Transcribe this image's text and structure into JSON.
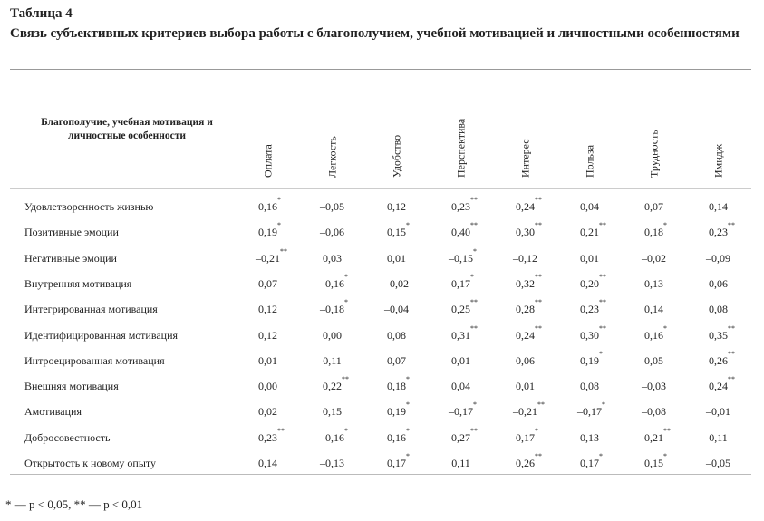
{
  "table": {
    "number": "Таблица 4",
    "caption": "Связь субъективных критериев выбора работы с благополучием, учебной мотивацией и личностными особенностями",
    "row_header": "Благополучие, учебная мотивация и личностные особенности",
    "columns": [
      "Оплата",
      "Легкость",
      "Удобство",
      "Перспектива",
      "Интерес",
      "Польза",
      "Трудность",
      "Имидж"
    ],
    "rows": [
      {
        "label": "Удовлетворенность жизнью",
        "values": [
          [
            "0,16",
            "*"
          ],
          [
            "–0,05",
            ""
          ],
          [
            "0,12",
            ""
          ],
          [
            "0,23",
            "**"
          ],
          [
            "0,24",
            "**"
          ],
          [
            "0,04",
            ""
          ],
          [
            "0,07",
            ""
          ],
          [
            "0,14",
            ""
          ]
        ]
      },
      {
        "label": "Позитивные эмоции",
        "values": [
          [
            "0,19",
            "*"
          ],
          [
            "–0,06",
            ""
          ],
          [
            "0,15",
            "*"
          ],
          [
            "0,40",
            "**"
          ],
          [
            "0,30",
            "**"
          ],
          [
            "0,21",
            "**"
          ],
          [
            "0,18",
            "*"
          ],
          [
            "0,23",
            "**"
          ]
        ]
      },
      {
        "label": "Негативные эмоции",
        "values": [
          [
            "–0,21",
            "**"
          ],
          [
            "0,03",
            ""
          ],
          [
            "0,01",
            ""
          ],
          [
            "–0,15",
            "*"
          ],
          [
            "–0,12",
            ""
          ],
          [
            "0,01",
            ""
          ],
          [
            "–0,02",
            ""
          ],
          [
            "–0,09",
            ""
          ]
        ]
      },
      {
        "label": "Внутренняя мотивация",
        "values": [
          [
            "0,07",
            ""
          ],
          [
            "–0,16",
            "*"
          ],
          [
            "–0,02",
            ""
          ],
          [
            "0,17",
            "*"
          ],
          [
            "0,32",
            "**"
          ],
          [
            "0,20",
            "**"
          ],
          [
            "0,13",
            ""
          ],
          [
            "0,06",
            ""
          ]
        ]
      },
      {
        "label": "Интегрированная мотивация",
        "values": [
          [
            "0,12",
            ""
          ],
          [
            "–0,18",
            "*"
          ],
          [
            "–0,04",
            ""
          ],
          [
            "0,25",
            "**"
          ],
          [
            "0,28",
            "**"
          ],
          [
            "0,23",
            "**"
          ],
          [
            "0,14",
            ""
          ],
          [
            "0,08",
            ""
          ]
        ]
      },
      {
        "label": "Идентифицированная мотивация",
        "values": [
          [
            "0,12",
            ""
          ],
          [
            "0,00",
            ""
          ],
          [
            "0,08",
            ""
          ],
          [
            "0,31",
            "**"
          ],
          [
            "0,24",
            "**"
          ],
          [
            "0,30",
            "**"
          ],
          [
            "0,16",
            "*"
          ],
          [
            "0,35",
            "**"
          ]
        ]
      },
      {
        "label": "Интроецированная мотивация",
        "values": [
          [
            "0,01",
            ""
          ],
          [
            "0,11",
            ""
          ],
          [
            "0,07",
            ""
          ],
          [
            "0,01",
            ""
          ],
          [
            "0,06",
            ""
          ],
          [
            "0,19",
            "*"
          ],
          [
            "0,05",
            ""
          ],
          [
            "0,26",
            "**"
          ]
        ]
      },
      {
        "label": "Внешняя мотивация",
        "values": [
          [
            "0,00",
            ""
          ],
          [
            "0,22",
            "**"
          ],
          [
            "0,18",
            "*"
          ],
          [
            "0,04",
            ""
          ],
          [
            "0,01",
            ""
          ],
          [
            "0,08",
            ""
          ],
          [
            "–0,03",
            ""
          ],
          [
            "0,24",
            "**"
          ]
        ]
      },
      {
        "label": "Амотивация",
        "values": [
          [
            "0,02",
            ""
          ],
          [
            "0,15",
            ""
          ],
          [
            "0,19",
            "*"
          ],
          [
            "–0,17",
            "*"
          ],
          [
            "–0,21",
            "**"
          ],
          [
            "–0,17",
            "*"
          ],
          [
            "–0,08",
            ""
          ],
          [
            "–0,01",
            ""
          ]
        ]
      },
      {
        "label": "Добросовестность",
        "values": [
          [
            "0,23",
            "**"
          ],
          [
            "–0,16",
            "*"
          ],
          [
            "0,16",
            "*"
          ],
          [
            "0,27",
            "**"
          ],
          [
            "0,17",
            "*"
          ],
          [
            "0,13",
            ""
          ],
          [
            "0,21",
            "**"
          ],
          [
            "0,11",
            ""
          ]
        ]
      },
      {
        "label": "Открытость к новому опыту",
        "values": [
          [
            "0,14",
            ""
          ],
          [
            "–0,13",
            ""
          ],
          [
            "0,17",
            "*"
          ],
          [
            "0,11",
            ""
          ],
          [
            "0,26",
            "**"
          ],
          [
            "0,17",
            "*"
          ],
          [
            "0,15",
            "*"
          ],
          [
            "–0,05",
            ""
          ]
        ]
      }
    ],
    "footnote": "* — p < 0,05, ** — p < 0,01"
  }
}
